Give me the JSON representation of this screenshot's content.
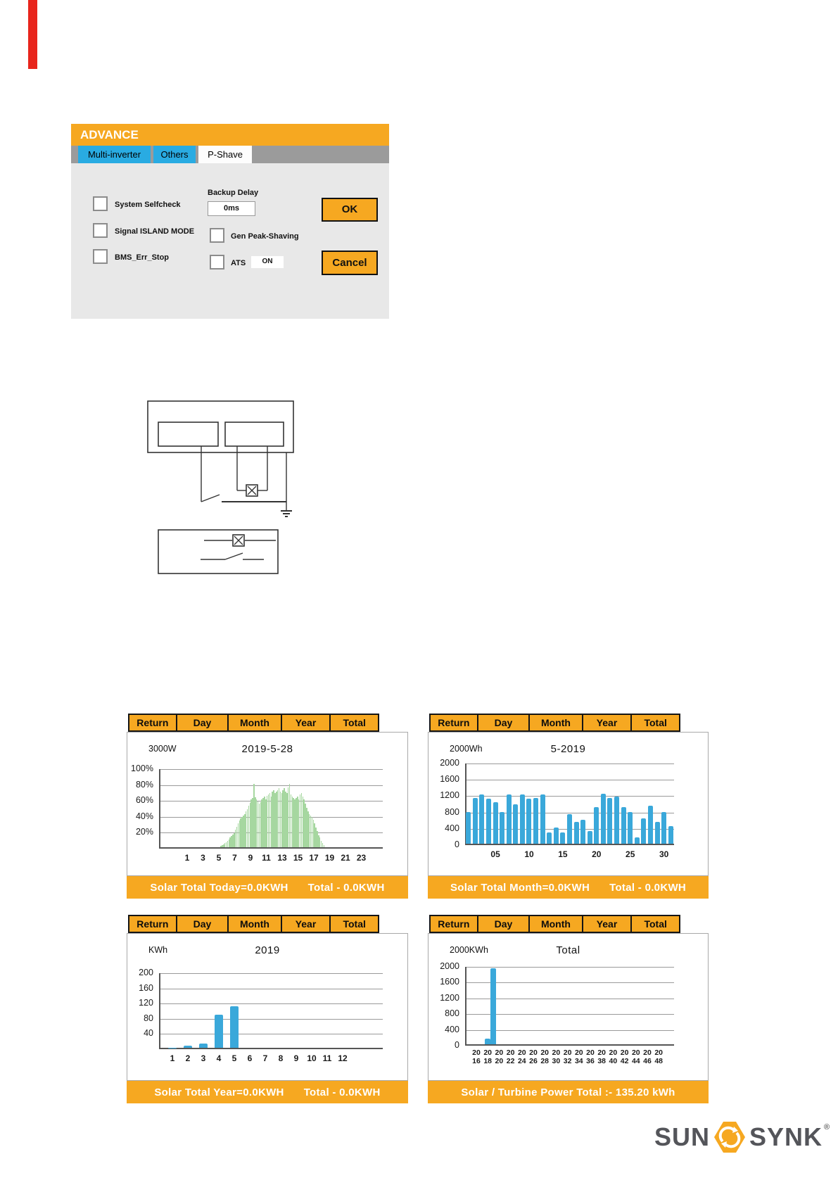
{
  "colors": {
    "orange": "#f6a821",
    "tab_blue": "#29abe2",
    "bar_blue": "#3aa8da",
    "bar_green": "#a6d7a0",
    "red": "#e8251c",
    "footer_text": "#ffffff"
  },
  "advance": {
    "title": "ADVANCE",
    "tabs": [
      {
        "label": "Multi-inverter",
        "active": false
      },
      {
        "label": "Others",
        "active": false
      },
      {
        "label": "P-Shave",
        "active": true
      }
    ],
    "checkboxes": [
      "System Selfcheck",
      "Signal ISLAND MODE",
      "BMS_Err_Stop"
    ],
    "backup_delay": {
      "label": "Backup Delay",
      "value": "0ms"
    },
    "gen_peak_shaving_label": "Gen Peak-Shaving",
    "ats": {
      "label": "ATS",
      "value": "ON"
    },
    "ok_label": "OK",
    "cancel_label": "Cancel"
  },
  "nav_buttons": [
    "Return",
    "Day",
    "Month",
    "Year",
    "Total"
  ],
  "chart_data": [
    {
      "type": "bar",
      "view": "day",
      "unit_label": "3000W",
      "title": "2019-5-28",
      "y_ticks": [
        "100%",
        "80%",
        "60%",
        "40%",
        "20%"
      ],
      "ylim": [
        0,
        100
      ],
      "x_ticks": [
        "1",
        "3",
        "5",
        "7",
        "9",
        "11",
        "13",
        "15",
        "17",
        "19",
        "21",
        "23"
      ],
      "bars": {
        "start_hour": 5.2,
        "step_hours": 0.1667,
        "values_pct": [
          2,
          3,
          4,
          5,
          6,
          8,
          10,
          12,
          14,
          16,
          18,
          22,
          26,
          30,
          34,
          36,
          38,
          40,
          42,
          45,
          48,
          52,
          56,
          60,
          62,
          80,
          63,
          60,
          58,
          55,
          57,
          60,
          62,
          64,
          60,
          65,
          66,
          68,
          64,
          70,
          72,
          68,
          70,
          72,
          74,
          70,
          68,
          72,
          74,
          70,
          68,
          75,
          80,
          66,
          64,
          62,
          60,
          62,
          64,
          60,
          66,
          68,
          64,
          60,
          55,
          50,
          45,
          42,
          40,
          38,
          35,
          30,
          25,
          20,
          15,
          12,
          8,
          5,
          3
        ]
      },
      "footer": [
        "Solar Total Today=0.0KWH",
        "Total - 0.0KWH"
      ]
    },
    {
      "type": "bar",
      "view": "month",
      "unit_label": "2000Wh",
      "title": "5-2019",
      "y_ticks": [
        "2000",
        "1600",
        "1200",
        "800",
        "400",
        "0"
      ],
      "ylim": [
        0,
        2000
      ],
      "x_ticks": [
        "05",
        "10",
        "15",
        "20",
        "25",
        "30"
      ],
      "x_tick_days": [
        5,
        10,
        15,
        20,
        25,
        30
      ],
      "days": 31,
      "values_wh": [
        780,
        1130,
        1210,
        1100,
        1010,
        780,
        1210,
        960,
        1210,
        1110,
        1130,
        1210,
        280,
        400,
        280,
        720,
        540,
        590,
        310,
        900,
        1220,
        1120,
        1150,
        900,
        780,
        160,
        630,
        930,
        540,
        780,
        430
      ],
      "footer": [
        "Solar Total Month=0.0KWH",
        "Total - 0.0KWH"
      ]
    },
    {
      "type": "bar",
      "view": "year",
      "unit_label": "KWh",
      "title": "2019",
      "y_ticks": [
        "200",
        "160",
        "120",
        "80",
        "40"
      ],
      "ylim": [
        0,
        200
      ],
      "x_ticks": [
        "1",
        "2",
        "3",
        "4",
        "5",
        "6",
        "7",
        "8",
        "9",
        "10",
        "11",
        "12"
      ],
      "values_kwh": [
        1,
        5,
        12,
        88,
        110,
        0,
        0,
        0,
        0,
        0,
        0,
        0
      ],
      "footer": [
        "Solar Total Year=0.0KWH",
        "Total - 0.0KWH"
      ]
    },
    {
      "type": "bar",
      "view": "total",
      "unit_label": "2000KWh",
      "title": "Total",
      "y_ticks": [
        "2000",
        "1600",
        "1200",
        "800",
        "400",
        "0"
      ],
      "ylim": [
        0,
        2000
      ],
      "x_tick_row1": [
        "20",
        "20",
        "20",
        "20",
        "20",
        "20",
        "20",
        "20",
        "20",
        "20",
        "20",
        "20",
        "20",
        "20",
        "20",
        "20",
        "20"
      ],
      "x_tick_row2": [
        "16",
        "18",
        "20",
        "22",
        "24",
        "26",
        "28",
        "30",
        "32",
        "34",
        "36",
        "38",
        "40",
        "42",
        "44",
        "46",
        "48"
      ],
      "year_range": [
        2016,
        2048
      ],
      "bars": [
        {
          "year": 2018,
          "value": 150
        },
        {
          "year": 2019,
          "value": 1930
        }
      ],
      "footer": [
        "Solar / Turbine Power Total :- 135.20 kWh"
      ]
    }
  ],
  "logo": {
    "sun": "SUN",
    "synk": "SYNK",
    "reg": "®"
  }
}
